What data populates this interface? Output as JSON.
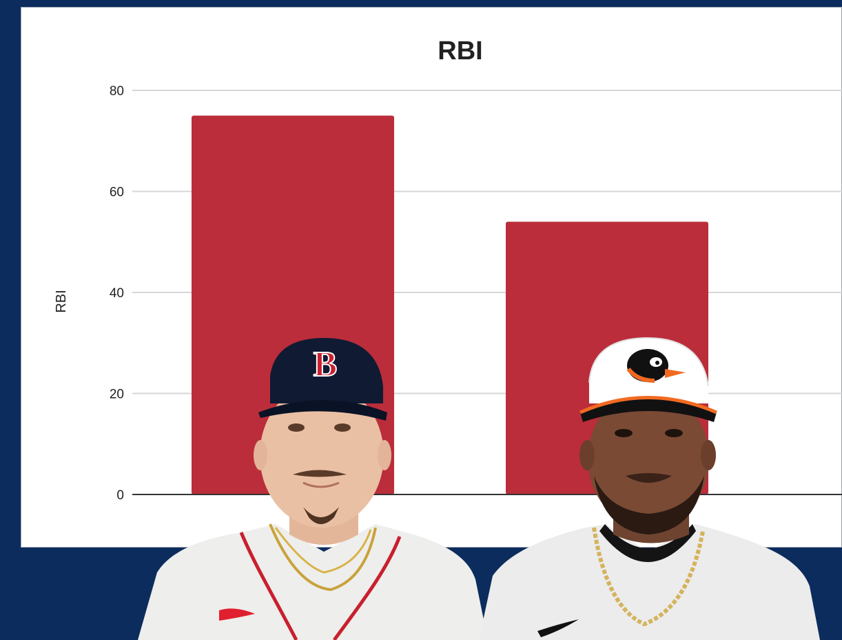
{
  "colors": {
    "background": "#0c2c5e",
    "panel": "#ffffff",
    "bar": "#bb2d3a",
    "gridline": "#d6d6d6",
    "baseline": "#333333"
  },
  "chart_data": {
    "type": "bar",
    "title": "RBI",
    "xlabel": "",
    "ylabel": "RBI",
    "ylim": [
      0,
      80
    ],
    "yticks": [
      0,
      20,
      40,
      60,
      80
    ],
    "grid": true,
    "categories": [
      "",
      ""
    ],
    "values": [
      75,
      54
    ]
  },
  "players": [
    {
      "team": "Boston Red Sox",
      "cap_logo": "B",
      "icon": "player-photo-red-sox"
    },
    {
      "team": "Baltimore Orioles",
      "cap_logo": "oriole-bird",
      "icon": "player-photo-orioles"
    }
  ]
}
